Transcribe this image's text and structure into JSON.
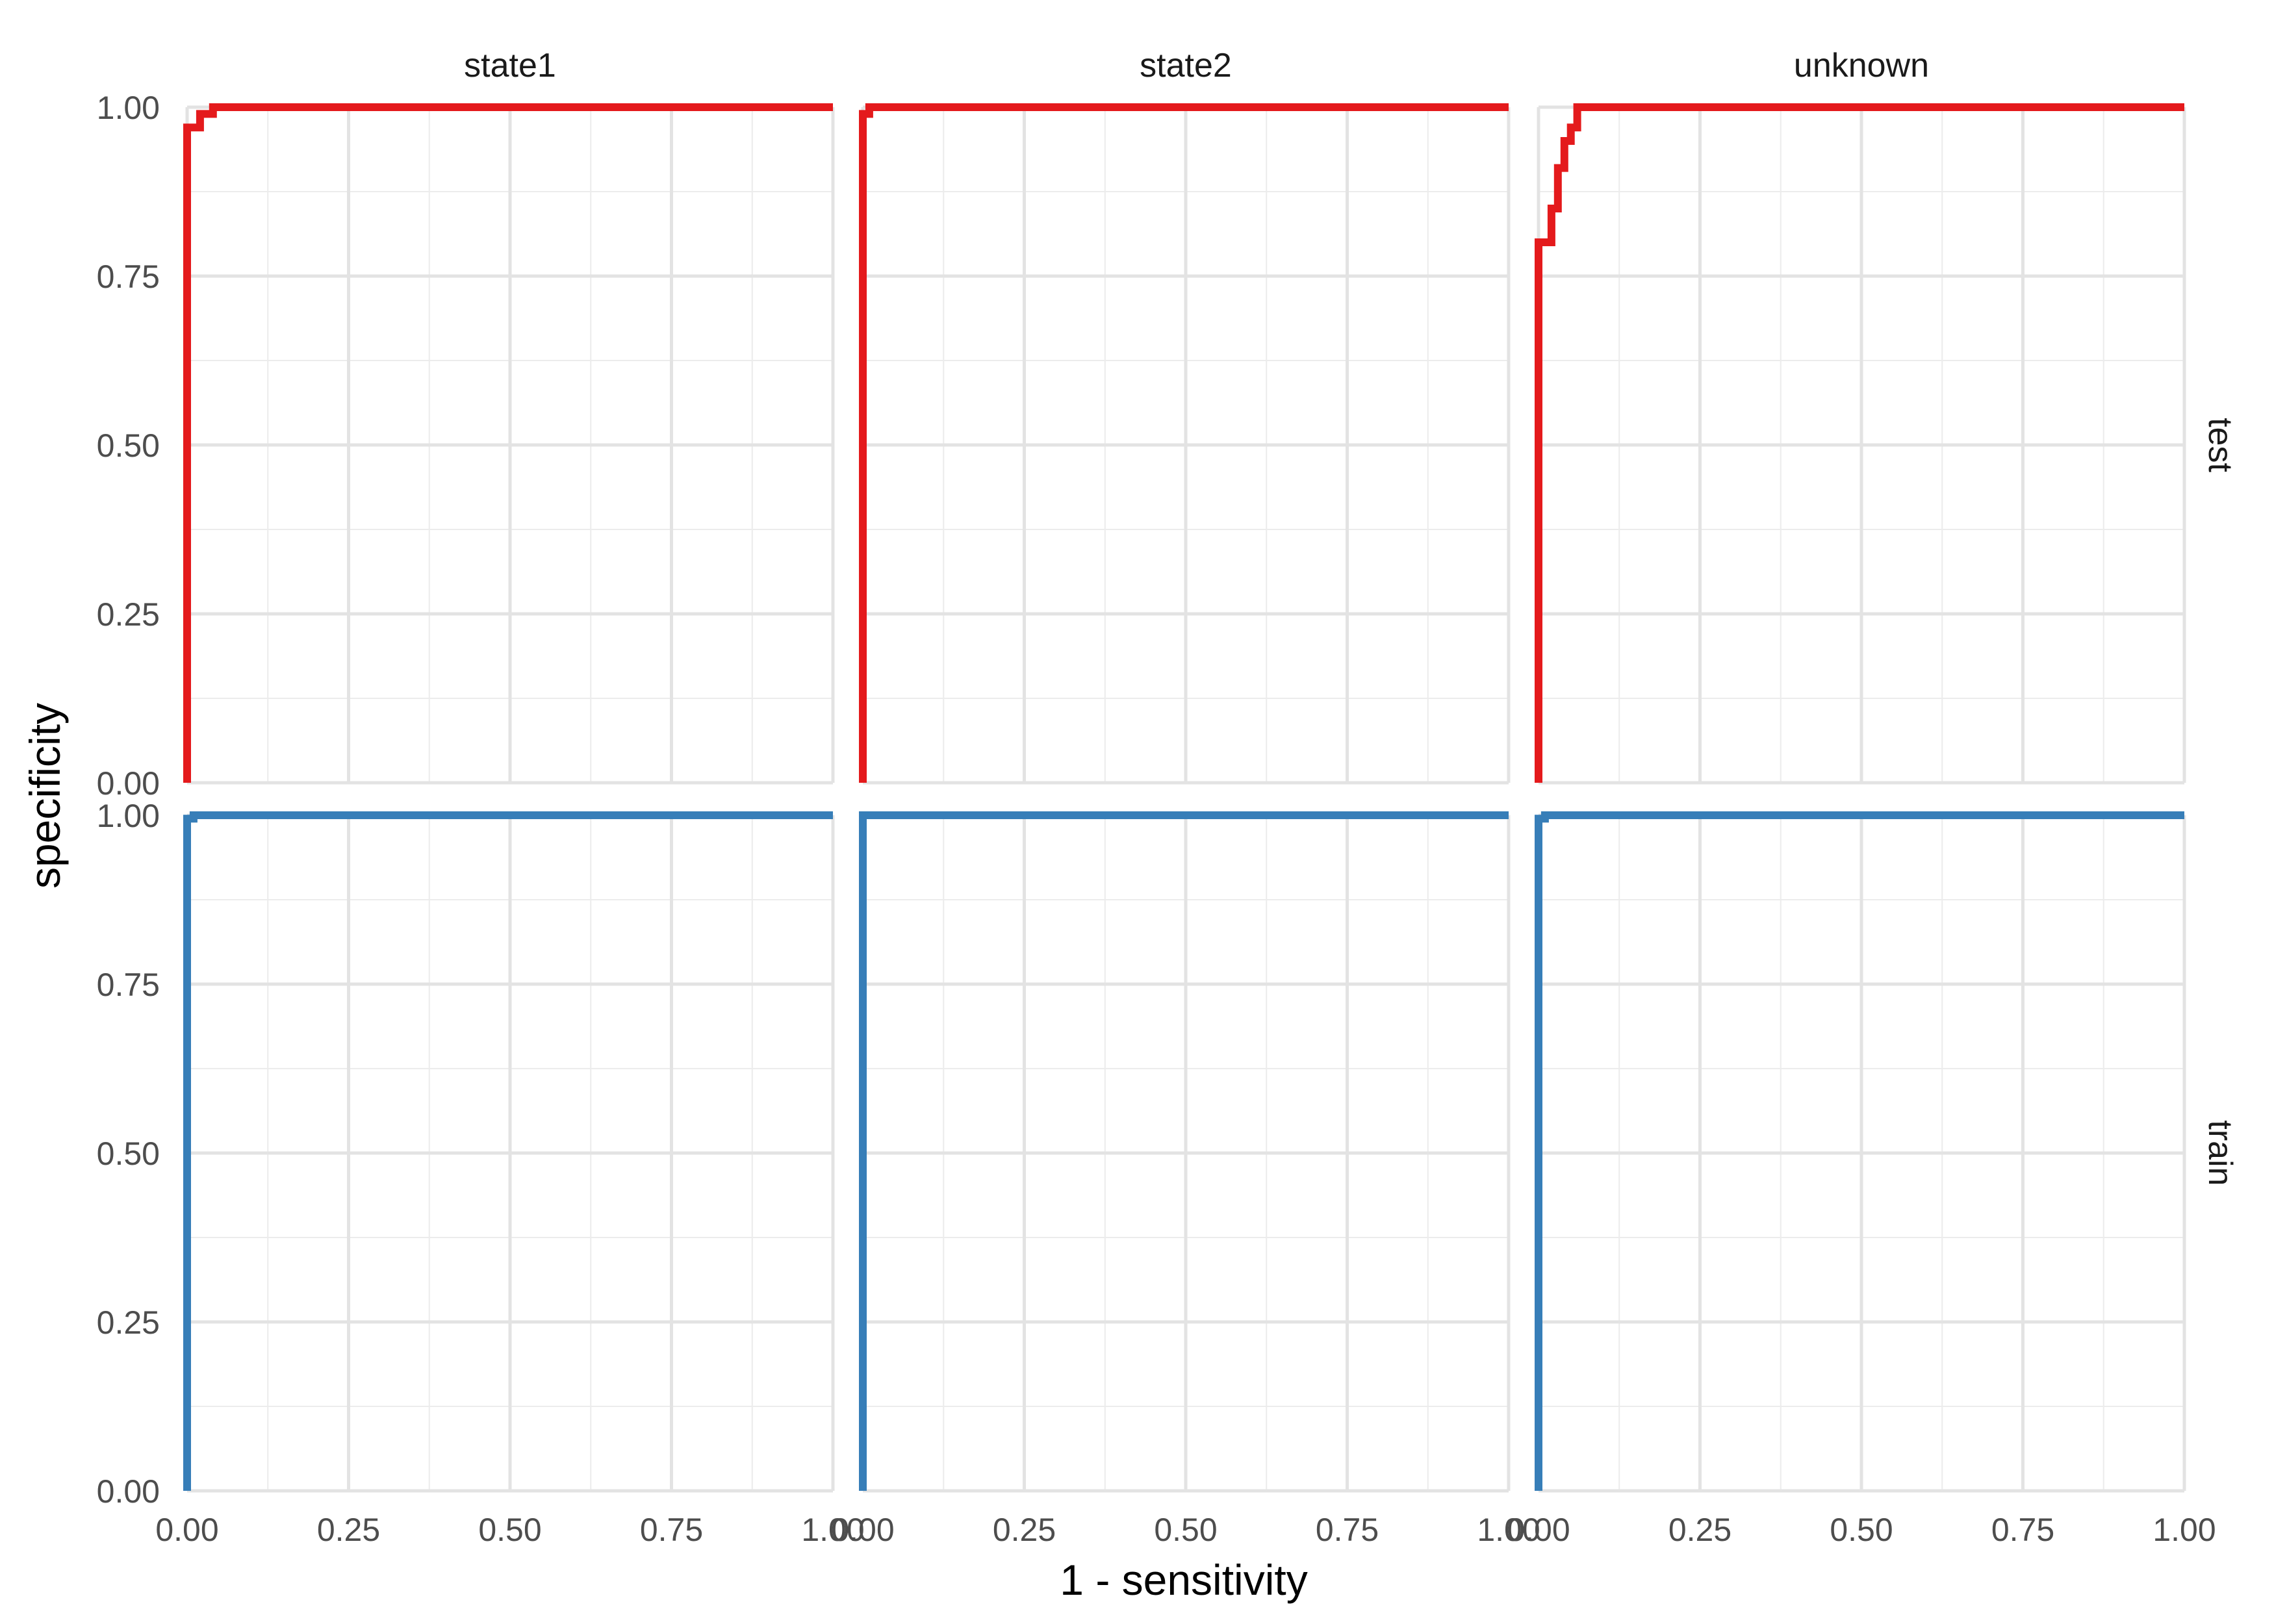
{
  "chart_data": {
    "type": "line",
    "xlabel": "1 - sensitivity",
    "ylabel": "specificity",
    "xlim": [
      0,
      1
    ],
    "ylim": [
      0,
      1
    ],
    "x_ticks": [
      "0.00",
      "0.25",
      "0.50",
      "0.75",
      "1.00"
    ],
    "y_ticks": [
      "0.00",
      "0.25",
      "0.50",
      "0.75",
      "1.00"
    ],
    "grid": true,
    "columns": [
      "state1",
      "state2",
      "unknown"
    ],
    "rows": [
      "test",
      "train"
    ],
    "colors": {
      "test": "#E41A1C",
      "train": "#377EB8"
    },
    "panels": [
      {
        "column": "state1",
        "row": "test",
        "x": [
          0,
          0,
          0.02,
          0.02,
          0.04,
          0.04,
          1
        ],
        "y": [
          0,
          0.97,
          0.97,
          0.99,
          0.99,
          1,
          1
        ]
      },
      {
        "column": "state2",
        "row": "test",
        "x": [
          0,
          0,
          0.01,
          0.01,
          1
        ],
        "y": [
          0,
          0.99,
          0.99,
          1,
          1
        ]
      },
      {
        "column": "unknown",
        "row": "test",
        "x": [
          0,
          0,
          0.02,
          0.02,
          0.03,
          0.03,
          0.04,
          0.04,
          0.05,
          0.05,
          0.06,
          0.06,
          1
        ],
        "y": [
          0,
          0.8,
          0.8,
          0.85,
          0.85,
          0.91,
          0.91,
          0.95,
          0.95,
          0.97,
          0.97,
          1,
          1
        ]
      },
      {
        "column": "state1",
        "row": "train",
        "x": [
          0,
          0,
          0.01,
          0.01,
          1
        ],
        "y": [
          0,
          0.995,
          0.995,
          1,
          1
        ]
      },
      {
        "column": "state2",
        "row": "train",
        "x": [
          0,
          0,
          1
        ],
        "y": [
          0,
          1,
          1
        ]
      },
      {
        "column": "unknown",
        "row": "train",
        "x": [
          0,
          0,
          0.01,
          0.01,
          1
        ],
        "y": [
          0,
          0.995,
          0.995,
          1,
          1
        ]
      }
    ]
  }
}
